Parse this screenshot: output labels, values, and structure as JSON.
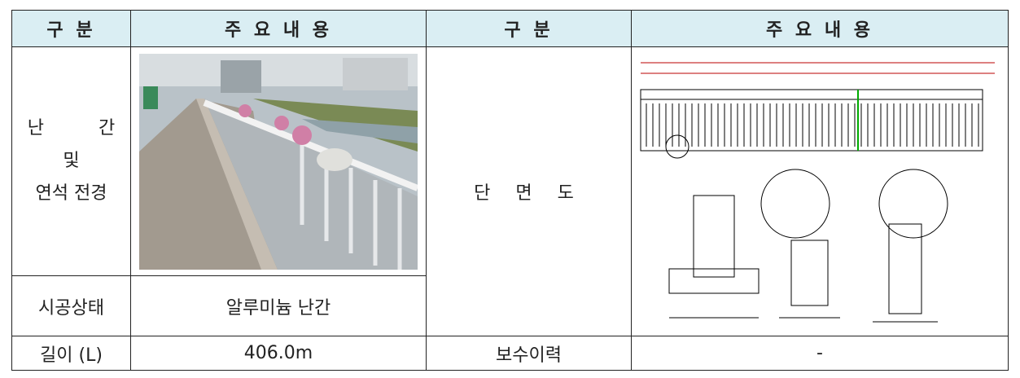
{
  "table": {
    "header": [
      "구 분",
      "주 요 내 용",
      "구 분",
      "주 요 내 용"
    ],
    "rows": [
      {
        "label_lines": [
          "난 간",
          "및",
          "연석 전경"
        ],
        "section_label": "단 면 도"
      },
      {
        "label": "시공상태",
        "value": "알루미늄 난간"
      },
      {
        "label": "길이 (L)",
        "value": "406.0m",
        "label2": "보수이력",
        "value2": "-"
      }
    ]
  }
}
